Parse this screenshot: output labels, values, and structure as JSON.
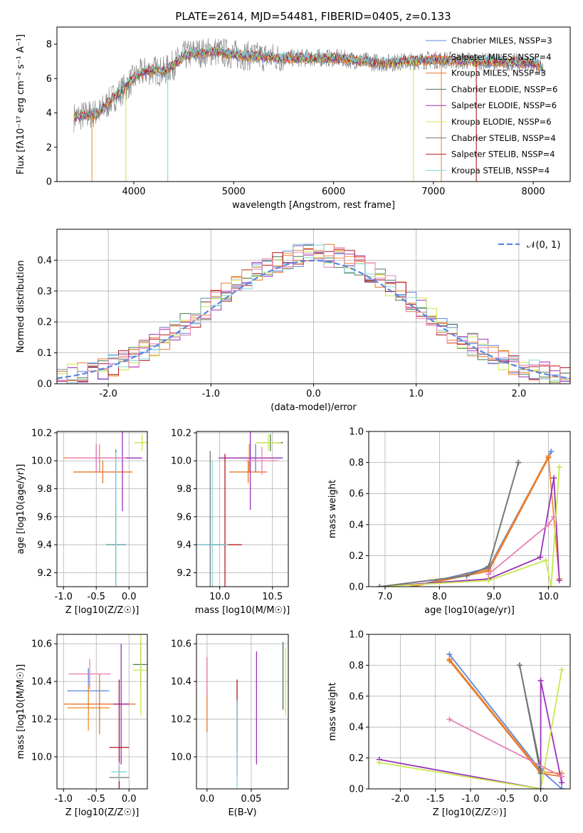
{
  "figure": {
    "title": "PLATE=2614, MJD=54481, FIBERID=0405, z=0.133"
  },
  "colors": {
    "chabrier_miles": "#5b84e0",
    "salpeter_miles": "#f28e2b",
    "kroupa_miles": "#e8772e",
    "chabrier_elodie": "#4a7a55",
    "salpeter_elodie": "#9a32b8",
    "kroupa_elodie": "#c9e84a",
    "chabrier_stelib": "#777777",
    "salpeter_stelib": "#b5171f",
    "kroupa_stelib": "#7fd6de",
    "extra_pink": "#e87fb8",
    "data": "#808080",
    "grid": "#b0b0b0"
  },
  "chart_data": [
    {
      "id": "spectrum",
      "type": "line",
      "xlabel": "wavelength [Angstrom, rest frame]",
      "ylabel": "Flux [fλ10⁻¹⁷ erg cm⁻² s⁻¹ A⁻¹]",
      "xlim": [
        3230,
        8370
      ],
      "ylim": [
        0,
        9
      ],
      "xticks": [
        4000,
        5000,
        6000,
        7000,
        8000
      ],
      "yticks": [
        0,
        2,
        4,
        6,
        8
      ],
      "grid": false,
      "legend_position": "right",
      "legend": [
        {
          "label": "Chabrier MILES, NSSP=3",
          "color_key": "chabrier_miles"
        },
        {
          "label": "Salpeter MILES, NSSP=4",
          "color_key": "salpeter_miles"
        },
        {
          "label": "Kroupa MILES, NSSP=3",
          "color_key": "kroupa_miles"
        },
        {
          "label": "Chabrier ELODIE, NSSP=6",
          "color_key": "chabrier_elodie"
        },
        {
          "label": "Salpeter ELODIE, NSSP=6",
          "color_key": "salpeter_elodie"
        },
        {
          "label": "Kroupa ELODIE, NSSP=6",
          "color_key": "kroupa_elodie"
        },
        {
          "label": "Chabrier STELIB, NSSP=4",
          "color_key": "chabrier_stelib"
        },
        {
          "label": "Salpeter STELIB, NSSP=4",
          "color_key": "salpeter_stelib"
        },
        {
          "label": "Kroupa STELIB, NSSP=4",
          "color_key": "kroupa_stelib"
        }
      ],
      "continuum": {
        "x": [
          3400,
          3550,
          3650,
          3700,
          3800,
          3900,
          4000,
          4100,
          4200,
          4300,
          4400,
          4500,
          4600,
          4700,
          4800,
          5000,
          5200,
          5500,
          6000,
          6500,
          7000,
          7500,
          8000,
          8100
        ],
        "y": [
          3.75,
          3.9,
          4.0,
          4.3,
          4.9,
          5.4,
          6.0,
          6.4,
          6.5,
          6.4,
          6.8,
          7.3,
          7.5,
          7.5,
          7.6,
          7.4,
          7.3,
          7.2,
          7.2,
          6.9,
          7.1,
          7.0,
          6.9,
          6.6
        ]
      },
      "model_drops": [
        {
          "x": 3580,
          "series": "salpeter_miles"
        },
        {
          "x": 3920,
          "series": "kroupa_elodie"
        },
        {
          "x": 4340,
          "series": "kroupa_stelib"
        },
        {
          "x": 6800,
          "series": "kroupa_elodie"
        },
        {
          "x": 7080,
          "series": "salpeter_miles"
        },
        {
          "x": 7430,
          "series": "salpeter_stelib"
        }
      ]
    },
    {
      "id": "residuals",
      "type": "bar",
      "xlabel": "(data-model)/error",
      "ylabel": "Normed distribution",
      "xlim": [
        -2.5,
        2.5
      ],
      "ylim": [
        0,
        0.5
      ],
      "xticks": [
        -2,
        -1,
        0,
        1,
        2
      ],
      "yticks": [
        0.0,
        0.1,
        0.2,
        0.3,
        0.4
      ],
      "grid": true,
      "legend_position": "top-right",
      "legend": [
        {
          "label": "𝒩(0, 1)",
          "color_key": "chabrier_miles",
          "style": "dashed"
        }
      ],
      "bin_width": 0.1,
      "bin_start": -2.5,
      "reference_curve": "normal(0, 1)"
    },
    {
      "id": "age_vs_z",
      "type": "scatter",
      "xlabel": "Z [log10(Z/Z☉)]",
      "ylabel": "age  [log10(age/yr)]",
      "xlim": [
        -1.1,
        0.28
      ],
      "ylim": [
        9.1,
        10.21
      ],
      "xticks": [
        -1.0,
        -0.5,
        0.0
      ],
      "yticks": [
        9.2,
        9.4,
        9.6,
        9.8,
        10.0,
        10.2
      ],
      "grid": true,
      "points": [
        {
          "x": -0.5,
          "y": 10.02,
          "xerr": 0.5,
          "yerr": 0.1,
          "series": "chabrier_miles"
        },
        {
          "x": -0.45,
          "y": 10.02,
          "xerr": 0.55,
          "yerr": 0.1,
          "series": "salpeter_miles"
        },
        {
          "x": -0.4,
          "y": 9.92,
          "xerr": 0.45,
          "yerr": 0.08,
          "series": "kroupa_miles"
        },
        {
          "x": -0.2,
          "y": 9.4,
          "xerr": 0.15,
          "yerr": 0.68,
          "series": "chabrier_elodie"
        },
        {
          "x": -0.1,
          "y": 10.02,
          "xerr": 0.3,
          "yerr": 0.38,
          "series": "salpeter_elodie"
        },
        {
          "x": 0.2,
          "y": 10.13,
          "xerr": 0.12,
          "yerr": 0.06,
          "series": "kroupa_elodie"
        },
        {
          "x": -0.2,
          "y": 9.4,
          "xerr": 0.15,
          "yerr": 0.67,
          "series": "chabrier_stelib"
        },
        {
          "x": -0.2,
          "y": 9.4,
          "xerr": 0.15,
          "yerr": 0.25,
          "series": "salpeter_stelib"
        },
        {
          "x": -0.2,
          "y": 9.4,
          "xerr": 0.15,
          "yerr": 0.66,
          "series": "kroupa_stelib"
        },
        {
          "x": -0.5,
          "y": 10.02,
          "xerr": 0.45,
          "yerr": 0.1,
          "series": "extra_pink"
        }
      ]
    },
    {
      "id": "age_vs_mass",
      "type": "scatter",
      "xlabel": "mass [log10(M/M☉)]",
      "ylabel": "",
      "xlim": [
        9.78,
        10.65
      ],
      "ylim": [
        9.1,
        10.21
      ],
      "xticks": [
        10.0,
        10.5
      ],
      "yticks": [
        9.2,
        9.4,
        9.6,
        9.8,
        10.0,
        10.2
      ],
      "grid": true,
      "points": [
        {
          "x": 10.34,
          "y": 10.02,
          "xerr": 0.26,
          "yerr": 0.1,
          "series": "chabrier_miles"
        },
        {
          "x": 10.28,
          "y": 10.02,
          "xerr": 0.26,
          "yerr": 0.1,
          "series": "salpeter_miles"
        },
        {
          "x": 10.27,
          "y": 9.92,
          "xerr": 0.18,
          "yerr": 0.08,
          "series": "kroupa_miles"
        },
        {
          "x": 10.48,
          "y": 10.13,
          "xerr": 0.12,
          "yerr": 0.06,
          "series": "chabrier_elodie"
        },
        {
          "x": 10.29,
          "y": 10.02,
          "xerr": 0.3,
          "yerr": 0.37,
          "series": "salpeter_elodie"
        },
        {
          "x": 10.46,
          "y": 10.13,
          "xerr": 0.12,
          "yerr": 0.06,
          "series": "kroupa_elodie"
        },
        {
          "x": 9.91,
          "y": 9.4,
          "xerr": 0.15,
          "yerr": 0.67,
          "series": "chabrier_stelib"
        },
        {
          "x": 10.05,
          "y": 9.4,
          "xerr": 0.16,
          "yerr": 0.65,
          "series": "salpeter_stelib"
        },
        {
          "x": 9.93,
          "y": 9.4,
          "xerr": 0.15,
          "yerr": 0.6,
          "series": "kroupa_stelib"
        },
        {
          "x": 10.4,
          "y": 10.0,
          "xerr": 0.15,
          "yerr": 0.1,
          "series": "extra_pink"
        }
      ]
    },
    {
      "id": "mass_weight_vs_age",
      "type": "line",
      "xlabel": "age  [log10(age/yr)]",
      "ylabel": "mass weight",
      "xlim": [
        6.7,
        10.4
      ],
      "ylim": [
        0.0,
        1.0
      ],
      "xticks": [
        7,
        8,
        9,
        10
      ],
      "yticks": [
        0.0,
        0.2,
        0.4,
        0.6,
        0.8,
        1.0
      ],
      "grid": true,
      "series": [
        {
          "name": "chabrier_miles",
          "x": [
            7.5,
            8.9,
            10.05
          ],
          "y": [
            0.0,
            0.12,
            0.87
          ]
        },
        {
          "name": "salpeter_miles",
          "x": [
            7.5,
            8.9,
            10.0,
            10.2
          ],
          "y": [
            0.0,
            0.11,
            0.84,
            0.05
          ]
        },
        {
          "name": "kroupa_miles",
          "x": [
            7.5,
            8.9,
            10.0
          ],
          "y": [
            0.0,
            0.1,
            0.83
          ]
        },
        {
          "name": "chabrier_elodie",
          "x": [
            6.9,
            8.5,
            8.9,
            9.45
          ],
          "y": [
            0.0,
            0.07,
            0.13,
            0.8
          ]
        },
        {
          "name": "salpeter_elodie",
          "x": [
            6.9,
            8.9,
            9.85,
            10.1,
            10.2
          ],
          "y": [
            0.0,
            0.05,
            0.19,
            0.7,
            0.04
          ]
        },
        {
          "name": "kroupa_elodie",
          "x": [
            6.9,
            8.9,
            9.95,
            10.05,
            10.2
          ],
          "y": [
            0.0,
            0.04,
            0.17,
            0.0,
            0.77
          ]
        },
        {
          "name": "chabrier_stelib",
          "x": [
            6.9,
            8.5,
            8.9,
            9.45
          ],
          "y": [
            0.0,
            0.07,
            0.13,
            0.8
          ]
        },
        {
          "name": "extra_pink",
          "x": [
            8.9,
            10.0,
            10.1
          ],
          "y": [
            0.08,
            0.4,
            0.45
          ]
        }
      ]
    },
    {
      "id": "mass_vs_z",
      "type": "scatter",
      "xlabel": "Z [log10(Z/Z☉)]",
      "ylabel": "mass [log10(M/M☉)]",
      "xlim": [
        -1.1,
        0.28
      ],
      "ylim": [
        9.83,
        10.65
      ],
      "xticks": [
        -1.0,
        -0.5,
        0.0
      ],
      "yticks": [
        10.0,
        10.2,
        10.4,
        10.6
      ],
      "grid": true,
      "points": [
        {
          "x": -0.62,
          "y": 10.35,
          "xerr": 0.32,
          "yerr": 0.12,
          "series": "chabrier_miles"
        },
        {
          "x": -0.62,
          "y": 10.26,
          "xerr": 0.32,
          "yerr": 0.12,
          "series": "salpeter_miles"
        },
        {
          "x": -0.45,
          "y": 10.28,
          "xerr": 0.55,
          "yerr": 0.16,
          "series": "kroupa_miles"
        },
        {
          "x": 0.18,
          "y": 10.49,
          "xerr": 0.12,
          "yerr": 0.12,
          "series": "chabrier_elodie"
        },
        {
          "x": -0.12,
          "y": 10.28,
          "xerr": 0.12,
          "yerr": 0.32,
          "series": "salpeter_elodie"
        },
        {
          "x": 0.18,
          "y": 10.46,
          "xerr": 0.12,
          "yerr": 0.24,
          "series": "kroupa_elodie"
        },
        {
          "x": -0.15,
          "y": 9.89,
          "xerr": 0.15,
          "yerr": 0.05,
          "series": "chabrier_stelib"
        },
        {
          "x": -0.15,
          "y": 10.05,
          "xerr": 0.15,
          "yerr": 0.36,
          "series": "salpeter_stelib"
        },
        {
          "x": -0.15,
          "y": 9.92,
          "xerr": 0.12,
          "yerr": 0.05,
          "series": "kroupa_stelib"
        },
        {
          "x": -0.6,
          "y": 10.44,
          "xerr": 0.32,
          "yerr": 0.08,
          "series": "extra_pink"
        }
      ]
    },
    {
      "id": "mass_vs_ebv",
      "type": "scatter",
      "xlabel": "E(B-V)",
      "ylabel": "",
      "xlim": [
        -0.012,
        0.092
      ],
      "ylim": [
        9.83,
        10.65
      ],
      "xticks": [
        0.0,
        0.05
      ],
      "yticks": [
        10.0,
        10.2,
        10.4,
        10.6
      ],
      "grid": true,
      "points": [
        {
          "x": 0.0,
          "y": 10.33,
          "yerr": 0.2,
          "series": "kroupa_miles"
        },
        {
          "x": 0.0,
          "y": 10.43,
          "yerr": 0.1,
          "series": "extra_pink"
        },
        {
          "x": 0.034,
          "y": 10.22,
          "yerr": 0.19,
          "series": "salpeter_stelib"
        },
        {
          "x": 0.034,
          "y": 10.1,
          "yerr": 0.2,
          "series": "chabrier_stelib"
        },
        {
          "x": 0.034,
          "y": 10.05,
          "yerr": 0.25,
          "series": "kroupa_stelib"
        },
        {
          "x": 0.056,
          "y": 10.26,
          "yerr": 0.3,
          "series": "salpeter_elodie"
        },
        {
          "x": 0.086,
          "y": 10.43,
          "yerr": 0.18,
          "series": "chabrier_elodie"
        },
        {
          "x": 0.089,
          "y": 10.4,
          "yerr": 0.18,
          "series": "kroupa_elodie"
        }
      ]
    },
    {
      "id": "mass_weight_vs_z",
      "type": "line",
      "xlabel": "Z [log10(Z/Z☉)]",
      "ylabel": "mass weight",
      "xlim": [
        -2.45,
        0.42
      ],
      "ylim": [
        0.0,
        1.0
      ],
      "xticks": [
        -2.0,
        -1.5,
        -1.0,
        -0.5,
        0.0
      ],
      "yticks": [
        0.0,
        0.2,
        0.4,
        0.6,
        0.8,
        1.0
      ],
      "grid": true,
      "series": [
        {
          "name": "chabrier_miles",
          "x": [
            -1.3,
            0.0,
            0.3
          ],
          "y": [
            0.87,
            0.12,
            0.0
          ]
        },
        {
          "name": "salpeter_miles",
          "x": [
            -1.3,
            0.0,
            0.3
          ],
          "y": [
            0.84,
            0.11,
            0.1
          ]
        },
        {
          "name": "kroupa_miles",
          "x": [
            -1.3,
            0.0,
            0.3
          ],
          "y": [
            0.83,
            0.1,
            0.08
          ]
        },
        {
          "name": "chabrier_elodie",
          "x": [
            -0.3,
            0.0,
            0.0
          ],
          "y": [
            0.8,
            0.1,
            0.0
          ]
        },
        {
          "name": "salpeter_elodie",
          "x": [
            -2.3,
            0.0,
            0.0,
            0.3
          ],
          "y": [
            0.19,
            0.0,
            0.7,
            0.04
          ]
        },
        {
          "name": "kroupa_elodie",
          "x": [
            -2.3,
            0.0,
            0.3
          ],
          "y": [
            0.17,
            0.0,
            0.77
          ]
        },
        {
          "name": "chabrier_stelib",
          "x": [
            -0.3,
            0.0,
            0.0
          ],
          "y": [
            0.8,
            0.13,
            0.0
          ]
        },
        {
          "name": "extra_pink",
          "x": [
            -1.3,
            0.3
          ],
          "y": [
            0.45,
            0.08
          ]
        }
      ]
    }
  ]
}
